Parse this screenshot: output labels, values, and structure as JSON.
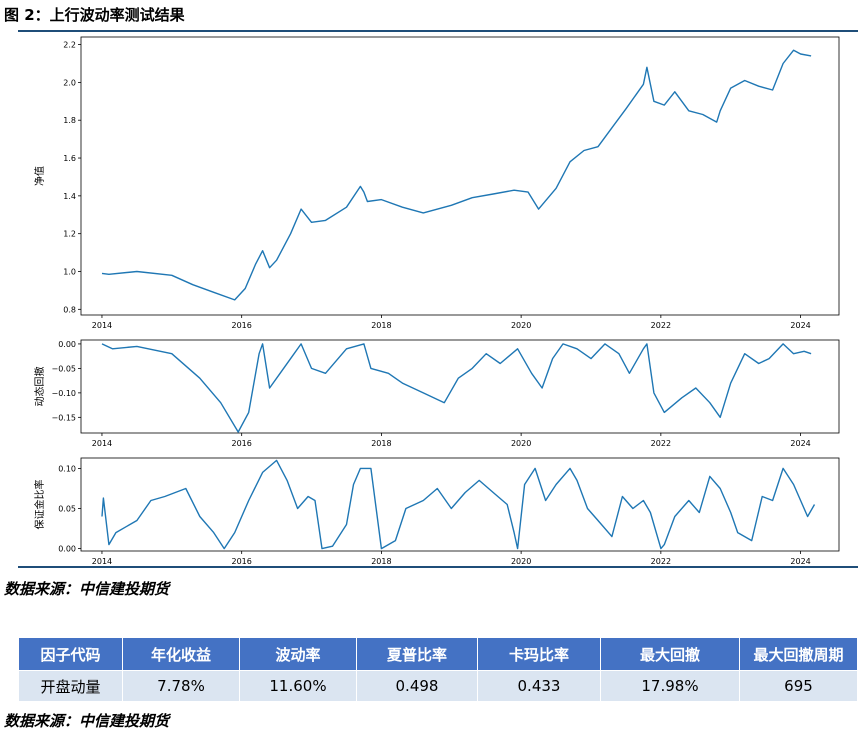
{
  "figure_title": "图 2：上行波动率测试结果",
  "source_text": "数据来源：中信建投期货",
  "chart_data": [
    {
      "type": "line",
      "ylabel": "净值",
      "xlim": [
        2013.7,
        2024.55
      ],
      "ylim": [
        0.77,
        2.24
      ],
      "xticks": [
        2014,
        2016,
        2018,
        2020,
        2022,
        2024
      ],
      "xtick_labels": [
        "2014",
        "2016",
        "2018",
        "2020",
        "2022",
        "2024"
      ],
      "yticks": [
        0.8,
        1.0,
        1.2,
        1.4,
        1.6,
        1.8,
        2.0,
        2.2
      ],
      "ytick_labels": [
        "0.8",
        "1.0",
        "1.2",
        "1.4",
        "1.6",
        "1.8",
        "2.0",
        "2.2"
      ],
      "color": "#1f77b4",
      "x": [
        2014.0,
        2014.1,
        2014.5,
        2015.0,
        2015.3,
        2015.6,
        2015.9,
        2016.05,
        2016.2,
        2016.3,
        2016.4,
        2016.5,
        2016.7,
        2016.85,
        2017.0,
        2017.2,
        2017.5,
        2017.7,
        2017.75,
        2017.8,
        2018.0,
        2018.3,
        2018.6,
        2019.0,
        2019.3,
        2019.6,
        2019.9,
        2020.1,
        2020.25,
        2020.5,
        2020.7,
        2020.9,
        2021.1,
        2021.3,
        2021.5,
        2021.75,
        2021.8,
        2021.9,
        2022.05,
        2022.2,
        2022.4,
        2022.6,
        2022.8,
        2022.85,
        2023.0,
        2023.2,
        2023.4,
        2023.6,
        2023.75,
        2023.9,
        2024.0,
        2024.15
      ],
      "y": [
        0.99,
        0.985,
        1.0,
        0.98,
        0.93,
        0.89,
        0.85,
        0.91,
        1.04,
        1.11,
        1.02,
        1.06,
        1.2,
        1.33,
        1.26,
        1.27,
        1.34,
        1.45,
        1.42,
        1.37,
        1.38,
        1.34,
        1.31,
        1.35,
        1.39,
        1.41,
        1.43,
        1.42,
        1.33,
        1.44,
        1.58,
        1.64,
        1.66,
        1.76,
        1.86,
        1.99,
        2.08,
        1.9,
        1.88,
        1.95,
        1.85,
        1.83,
        1.79,
        1.85,
        1.97,
        2.01,
        1.98,
        1.96,
        2.1,
        2.17,
        2.15,
        2.14
      ]
    },
    {
      "type": "line",
      "ylabel": "动态回撤",
      "xlim": [
        2013.7,
        2024.55
      ],
      "ylim": [
        -0.182,
        0.008
      ],
      "xticks": [
        2014,
        2016,
        2018,
        2020,
        2022,
        2024
      ],
      "xtick_labels": [
        "2014",
        "2016",
        "2018",
        "2020",
        "2022",
        "2024"
      ],
      "yticks": [
        0.0,
        -0.05,
        -0.1,
        -0.15
      ],
      "ytick_labels": [
        "0.00",
        "−0.05",
        "−0.10",
        "−0.15"
      ],
      "color": "#1f77b4",
      "x": [
        2014.0,
        2014.15,
        2014.5,
        2015.0,
        2015.4,
        2015.7,
        2015.95,
        2016.1,
        2016.25,
        2016.3,
        2016.4,
        2016.55,
        2016.75,
        2016.85,
        2017.0,
        2017.2,
        2017.5,
        2017.75,
        2017.85,
        2018.1,
        2018.3,
        2018.6,
        2018.9,
        2019.1,
        2019.3,
        2019.5,
        2019.7,
        2019.95,
        2020.15,
        2020.3,
        2020.45,
        2020.6,
        2020.8,
        2021.0,
        2021.2,
        2021.4,
        2021.55,
        2021.75,
        2021.8,
        2021.9,
        2022.05,
        2022.3,
        2022.5,
        2022.7,
        2022.85,
        2023.0,
        2023.2,
        2023.4,
        2023.55,
        2023.75,
        2023.9,
        2024.05,
        2024.15
      ],
      "y": [
        0.0,
        -0.01,
        -0.005,
        -0.02,
        -0.07,
        -0.12,
        -0.18,
        -0.14,
        -0.02,
        0.0,
        -0.09,
        -0.06,
        -0.02,
        0.0,
        -0.05,
        -0.06,
        -0.01,
        0.0,
        -0.05,
        -0.06,
        -0.08,
        -0.1,
        -0.12,
        -0.07,
        -0.05,
        -0.02,
        -0.04,
        -0.01,
        -0.06,
        -0.09,
        -0.03,
        0.0,
        -0.01,
        -0.03,
        0.0,
        -0.02,
        -0.06,
        -0.01,
        0.0,
        -0.1,
        -0.14,
        -0.11,
        -0.09,
        -0.12,
        -0.15,
        -0.08,
        -0.02,
        -0.04,
        -0.03,
        0.0,
        -0.02,
        -0.015,
        -0.02
      ]
    },
    {
      "type": "line",
      "ylabel": "保证金比率",
      "xlim": [
        2013.7,
        2024.55
      ],
      "ylim": [
        -0.003,
        0.113
      ],
      "xticks": [
        2014,
        2016,
        2018,
        2020,
        2022,
        2024
      ],
      "xtick_labels": [
        "2014",
        "2016",
        "2018",
        "2020",
        "2022",
        "2024"
      ],
      "yticks": [
        0.0,
        0.05,
        0.1
      ],
      "ytick_labels": [
        "0.00",
        "0.05",
        "0.10"
      ],
      "color": "#1f77b4",
      "x": [
        2014.0,
        2014.02,
        2014.1,
        2014.2,
        2014.5,
        2014.7,
        2014.9,
        2015.2,
        2015.4,
        2015.6,
        2015.75,
        2015.9,
        2016.1,
        2016.3,
        2016.5,
        2016.65,
        2016.8,
        2016.95,
        2017.05,
        2017.15,
        2017.3,
        2017.5,
        2017.6,
        2017.7,
        2017.85,
        2018.0,
        2018.2,
        2018.35,
        2018.6,
        2018.8,
        2019.0,
        2019.2,
        2019.4,
        2019.6,
        2019.8,
        2019.9,
        2019.95,
        2020.05,
        2020.2,
        2020.35,
        2020.5,
        2020.7,
        2020.8,
        2020.95,
        2021.1,
        2021.3,
        2021.45,
        2021.6,
        2021.75,
        2021.85,
        2022.0,
        2022.05,
        2022.2,
        2022.4,
        2022.55,
        2022.7,
        2022.85,
        2023.0,
        2023.1,
        2023.3,
        2023.45,
        2023.6,
        2023.75,
        2023.9,
        2024.0,
        2024.1,
        2024.2
      ],
      "y": [
        0.04,
        0.063,
        0.005,
        0.02,
        0.035,
        0.06,
        0.065,
        0.075,
        0.04,
        0.02,
        0.0,
        0.02,
        0.06,
        0.095,
        0.11,
        0.085,
        0.05,
        0.065,
        0.06,
        0.0,
        0.003,
        0.03,
        0.08,
        0.1,
        0.1,
        0.0,
        0.01,
        0.05,
        0.06,
        0.075,
        0.05,
        0.07,
        0.085,
        0.07,
        0.055,
        0.02,
        0.0,
        0.08,
        0.1,
        0.06,
        0.08,
        0.1,
        0.085,
        0.05,
        0.035,
        0.015,
        0.065,
        0.05,
        0.06,
        0.045,
        0.0,
        0.005,
        0.04,
        0.06,
        0.045,
        0.09,
        0.075,
        0.045,
        0.02,
        0.01,
        0.065,
        0.06,
        0.1,
        0.08,
        0.06,
        0.04,
        0.055
      ]
    }
  ],
  "table": {
    "headers": [
      "因子代码",
      "年化收益",
      "波动率",
      "夏普比率",
      "卡玛比率",
      "最大回撤",
      "最大回撤周期"
    ],
    "row": [
      "开盘动量",
      "7.78%",
      "11.60%",
      "0.498",
      "0.433",
      "17.98%",
      "695"
    ]
  }
}
